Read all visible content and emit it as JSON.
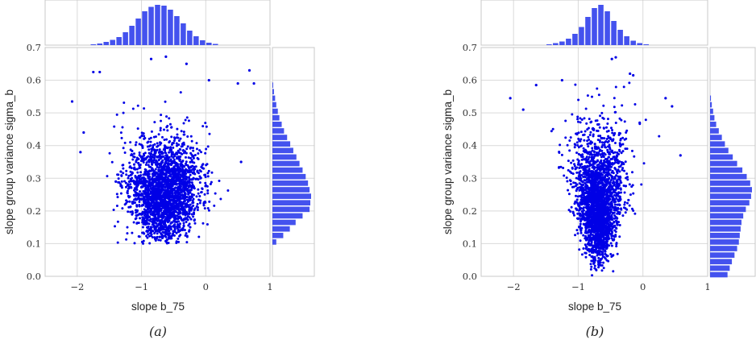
{
  "colors": {
    "points": "#0000e6",
    "bars": "#4452ee",
    "grid": "#d9d9d9"
  },
  "chart_data": [
    {
      "type": "scatter",
      "caption": "(a)",
      "xlabel": "slope b_75",
      "ylabel": "slope group variance sigma_b",
      "xlim": [
        -2.5,
        1.0
      ],
      "ylim": [
        0.0,
        0.7
      ],
      "xticks": [
        -2,
        -1,
        0,
        1
      ],
      "xtick_labels": [
        "−2",
        "−1",
        "0",
        "1"
      ],
      "yticks": [
        0.0,
        0.1,
        0.2,
        0.3,
        0.4,
        0.5,
        0.6,
        0.7
      ],
      "ytick_labels": [
        "0.0",
        "0.1",
        "0.2",
        "0.3",
        "0.4",
        "0.5",
        "0.6",
        "0.7"
      ],
      "grid": true,
      "marginal_histograms": "top and right",
      "scatter_distribution": {
        "x_center": -0.65,
        "x_spread": 0.26,
        "y_center": 0.26,
        "y_spread": 0.08,
        "y_min": 0.1,
        "n_points": 2500
      },
      "outliers": [
        [
          -2.08,
          0.535
        ],
        [
          -1.75,
          0.625
        ],
        [
          -1.65,
          0.625
        ],
        [
          -0.85,
          0.665
        ],
        [
          -0.62,
          0.672
        ],
        [
          -0.3,
          0.65
        ],
        [
          0.68,
          0.63
        ],
        [
          0.75,
          0.59
        ],
        [
          0.5,
          0.59
        ],
        [
          0.55,
          0.35
        ],
        [
          -1.95,
          0.38
        ],
        [
          -1.9,
          0.44
        ],
        [
          0.05,
          0.6
        ],
        [
          -1.4,
          0.29
        ]
      ],
      "hist_top_x": [
        -1.75,
        -1.65,
        -1.55,
        -1.45,
        -1.35,
        -1.25,
        -1.15,
        -1.05,
        -0.95,
        -0.85,
        -0.75,
        -0.65,
        -0.55,
        -0.45,
        -0.35,
        -0.25,
        -0.15,
        -0.05,
        0.05,
        0.15
      ],
      "hist_top_counts": [
        2,
        4,
        8,
        13,
        20,
        32,
        48,
        66,
        84,
        95,
        100,
        98,
        88,
        72,
        54,
        36,
        22,
        12,
        6,
        3
      ],
      "hist_right_y": [
        0.105,
        0.125,
        0.145,
        0.165,
        0.185,
        0.205,
        0.225,
        0.245,
        0.265,
        0.285,
        0.305,
        0.325,
        0.345,
        0.365,
        0.385,
        0.405,
        0.425,
        0.445,
        0.465,
        0.485,
        0.505,
        0.525,
        0.545,
        0.565,
        0.585
      ],
      "hist_right_counts": [
        10,
        28,
        45,
        60,
        78,
        96,
        98,
        100,
        96,
        92,
        86,
        78,
        70,
        62,
        54,
        46,
        38,
        30,
        24,
        18,
        14,
        10,
        7,
        4,
        2
      ]
    },
    {
      "type": "scatter",
      "caption": "(b)",
      "xlabel": "slope b_75",
      "ylabel": "slope group variance sigma_b",
      "xlim": [
        -2.5,
        1.0
      ],
      "ylim": [
        0.0,
        0.7
      ],
      "xticks": [
        -2,
        -1,
        0,
        1
      ],
      "xtick_labels": [
        "−2",
        "−1",
        "0",
        "1"
      ],
      "yticks": [
        0.0,
        0.1,
        0.2,
        0.3,
        0.4,
        0.5,
        0.6,
        0.7
      ],
      "ytick_labels": [
        "0.0",
        "0.1",
        "0.2",
        "0.3",
        "0.4",
        "0.5",
        "0.6",
        "0.7"
      ],
      "grid": true,
      "marginal_histograms": "top and right",
      "scatter_distribution": {
        "x_center": -0.68,
        "x_spread": 0.2,
        "y_center": 0.22,
        "y_spread": 0.11,
        "y_min": 0.0,
        "n_points": 2500,
        "funnel": true
      },
      "outliers": [
        [
          -2.05,
          0.545
        ],
        [
          -1.85,
          0.51
        ],
        [
          -1.65,
          0.585
        ],
        [
          -0.48,
          0.665
        ],
        [
          -0.42,
          0.67
        ],
        [
          -0.2,
          0.62
        ],
        [
          -0.15,
          0.615
        ],
        [
          0.35,
          0.545
        ],
        [
          0.45,
          0.52
        ],
        [
          0.58,
          0.37
        ],
        [
          -1.25,
          0.6
        ],
        [
          -0.05,
          0.47
        ]
      ],
      "hist_top_x": [
        -1.45,
        -1.35,
        -1.25,
        -1.15,
        -1.05,
        -0.95,
        -0.85,
        -0.75,
        -0.65,
        -0.55,
        -0.45,
        -0.35,
        -0.25,
        -0.15,
        -0.05,
        0.05
      ],
      "hist_top_counts": [
        2,
        5,
        9,
        16,
        28,
        45,
        70,
        92,
        100,
        84,
        60,
        38,
        22,
        11,
        5,
        2
      ],
      "hist_right_y": [
        0.005,
        0.025,
        0.045,
        0.065,
        0.085,
        0.105,
        0.125,
        0.145,
        0.165,
        0.185,
        0.205,
        0.225,
        0.245,
        0.265,
        0.285,
        0.305,
        0.325,
        0.345,
        0.365,
        0.385,
        0.405,
        0.425,
        0.445,
        0.465,
        0.485,
        0.505,
        0.525,
        0.545
      ],
      "hist_right_counts": [
        40,
        45,
        50,
        56,
        62,
        66,
        68,
        70,
        72,
        76,
        82,
        90,
        94,
        96,
        92,
        84,
        74,
        62,
        52,
        42,
        34,
        27,
        20,
        14,
        10,
        7,
        4,
        2
      ]
    }
  ]
}
